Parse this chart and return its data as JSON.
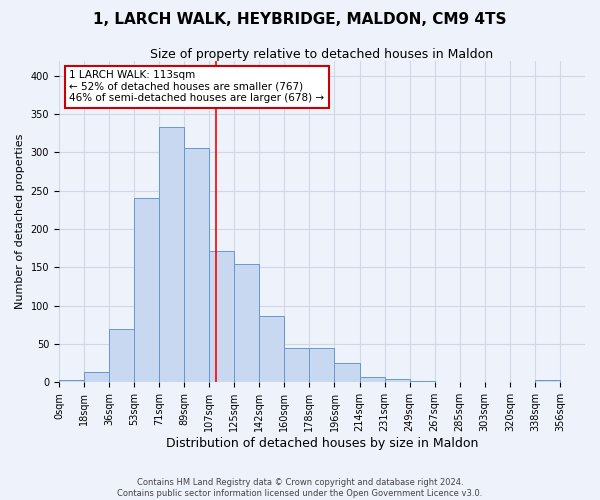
{
  "title": "1, LARCH WALK, HEYBRIDGE, MALDON, CM9 4TS",
  "subtitle": "Size of property relative to detached houses in Maldon",
  "xlabel": "Distribution of detached houses by size in Maldon",
  "ylabel": "Number of detached properties",
  "bar_color": "#c8d8f0",
  "bar_edge_color": "#6699cc",
  "background_color": "#eef2fb",
  "grid_color": "#d0d8e8",
  "categories": [
    "0sqm",
    "18sqm",
    "36sqm",
    "53sqm",
    "71sqm",
    "89sqm",
    "107sqm",
    "125sqm",
    "142sqm",
    "160sqm",
    "178sqm",
    "196sqm",
    "214sqm",
    "231sqm",
    "249sqm",
    "267sqm",
    "285sqm",
    "303sqm",
    "320sqm",
    "338sqm",
    "356sqm"
  ],
  "bar_heights": [
    3,
    13,
    70,
    240,
    333,
    306,
    172,
    155,
    87,
    45,
    45,
    25,
    7,
    5,
    2,
    1,
    1,
    0,
    0,
    3,
    0
  ],
  "ylim": [
    0,
    420
  ],
  "yticks": [
    0,
    50,
    100,
    150,
    200,
    250,
    300,
    350,
    400
  ],
  "red_line_x": 6.28,
  "annotation_text": "1 LARCH WALK: 113sqm\n← 52% of detached houses are smaller (767)\n46% of semi-detached houses are larger (678) →",
  "annotation_box_color": "#ffffff",
  "annotation_box_edge_color": "#cc0000",
  "footer_text": "Contains HM Land Registry data © Crown copyright and database right 2024.\nContains public sector information licensed under the Open Government Licence v3.0.",
  "title_fontsize": 11,
  "subtitle_fontsize": 9,
  "tick_fontsize": 7,
  "ylabel_fontsize": 8,
  "xlabel_fontsize": 9,
  "annotation_fontsize": 7.5
}
